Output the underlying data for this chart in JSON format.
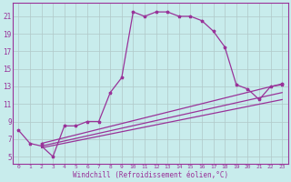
{
  "xlabel": "Windchill (Refroidissement éolien,°C)",
  "bg_color": "#c8ecec",
  "grid_color": "#b0c8c8",
  "line_color": "#993399",
  "spine_color": "#993399",
  "x_ticks": [
    0,
    1,
    2,
    3,
    4,
    5,
    6,
    7,
    8,
    9,
    10,
    11,
    12,
    13,
    14,
    15,
    16,
    17,
    18,
    19,
    20,
    21,
    22,
    23
  ],
  "y_ticks": [
    5,
    7,
    9,
    11,
    13,
    15,
    17,
    19,
    21
  ],
  "xlim": [
    -0.5,
    23.5
  ],
  "ylim": [
    4.2,
    22.5
  ],
  "curve1_x": [
    0,
    1,
    2,
    3,
    4,
    5,
    6,
    7,
    8,
    9,
    10,
    11,
    12,
    13,
    14,
    15,
    16,
    17,
    18,
    19,
    20,
    21,
    22,
    23
  ],
  "curve1_y": [
    8.0,
    6.5,
    6.2,
    5.0,
    8.5,
    8.5,
    9.0,
    9.0,
    12.3,
    14.0,
    21.5,
    21.0,
    21.5,
    21.5,
    21.0,
    21.0,
    20.5,
    19.3,
    17.5,
    13.2,
    12.7,
    11.5,
    13.0,
    13.2
  ],
  "line2_x": [
    2,
    23
  ],
  "line2_y": [
    6.5,
    13.3
  ],
  "line3_x": [
    2,
    23
  ],
  "line3_y": [
    6.0,
    11.5
  ],
  "line4_x": [
    2,
    23
  ],
  "line4_y": [
    6.2,
    12.3
  ],
  "marker": "*",
  "markersize": 2.5,
  "linewidth": 0.9
}
